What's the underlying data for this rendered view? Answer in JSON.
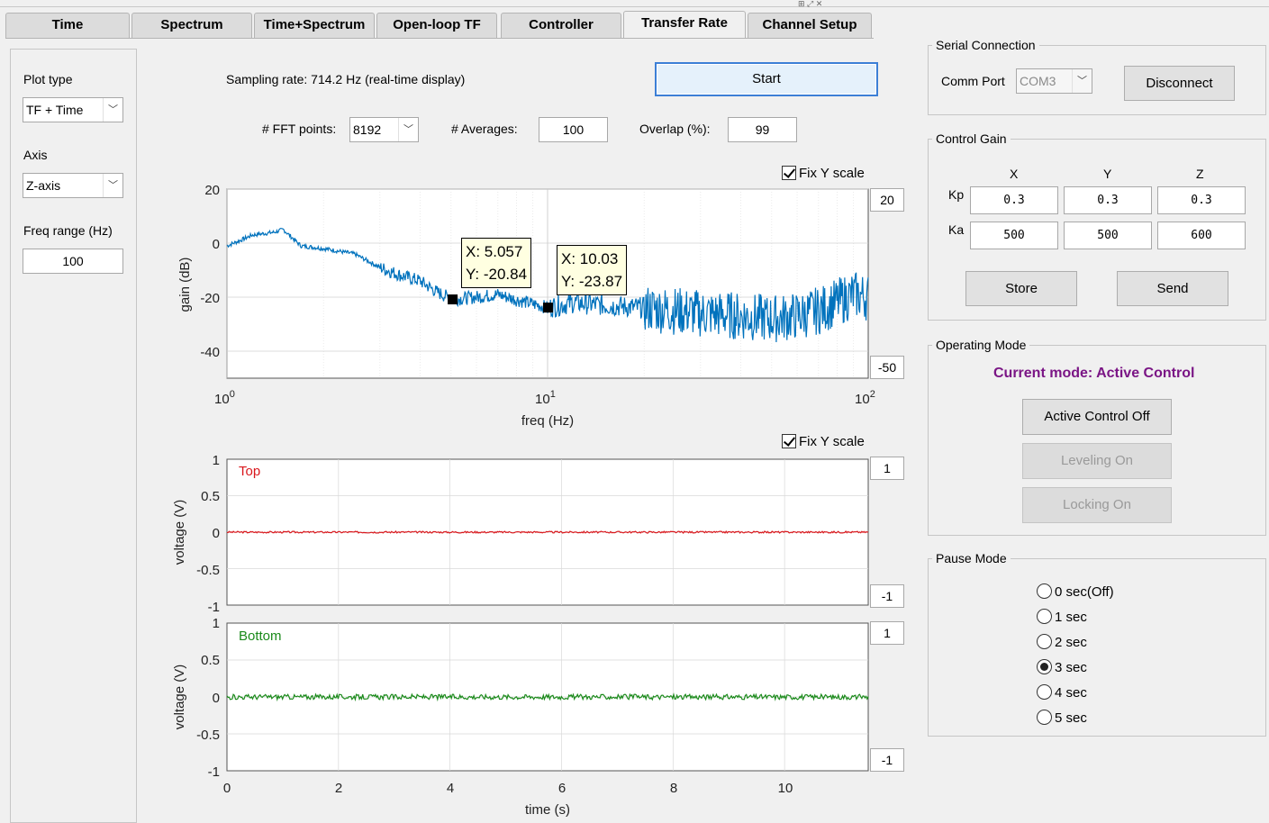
{
  "tabs": [
    {
      "label": "Time"
    },
    {
      "label": "Spectrum"
    },
    {
      "label": "Time+Spectrum"
    },
    {
      "label": "Open-loop TF"
    },
    {
      "label": "Controller"
    },
    {
      "label": "Transfer Rate"
    },
    {
      "label": "Channel Setup"
    }
  ],
  "active_tab": "Transfer Rate",
  "left_panel": {
    "plot_type_label": "Plot type",
    "plot_type_value": "TF + Time",
    "axis_label": "Axis",
    "axis_value": "Z-axis",
    "freq_range_label": "Freq range (Hz)",
    "freq_range_value": "100"
  },
  "acquisition": {
    "sampling_rate_text": "Sampling rate: 714.2 Hz (real-time display)",
    "start_label": "Start",
    "fft_points_label": "# FFT points:",
    "fft_points_value": "8192",
    "averages_label": "# Averages:",
    "averages_value": "100",
    "overlap_label": "Overlap (%):",
    "overlap_value": "99"
  },
  "tf_plot": {
    "fix_y_label": "Fix Y scale",
    "fix_y_checked": true,
    "y_max_field": "20",
    "y_min_field": "-50",
    "ylabel": "gain (dB)",
    "xlabel": "freq (Hz)",
    "yticks": [
      "20",
      "0",
      "-20",
      "-40"
    ],
    "xticks": [
      {
        "base": "10",
        "exp": "0"
      },
      {
        "base": "10",
        "exp": "1"
      },
      {
        "base": "10",
        "exp": "2"
      }
    ],
    "tips": [
      {
        "x": "X: 5.057",
        "y": "Y: -20.84"
      },
      {
        "x": "X: 10.03",
        "y": "Y: -23.87"
      }
    ],
    "line_color": "#0072bd"
  },
  "top_plot": {
    "fix_y_label": "Fix Y scale",
    "fix_y_checked": true,
    "legend": "Top",
    "legend_color": "#d9171c",
    "y_max_field": "1",
    "y_min_field": "-1",
    "ylabel": "voltage (V)",
    "yticks": [
      "1",
      "0.5",
      "0",
      "-0.5",
      "-1"
    ]
  },
  "bottom_plot": {
    "legend": "Bottom",
    "legend_color": "#1a8a1a",
    "y_max_field": "1",
    "y_min_field": "-1",
    "ylabel": "voltage (V)",
    "yticks": [
      "1",
      "0.5",
      "0",
      "-0.5",
      "-1"
    ],
    "xticks": [
      "0",
      "2",
      "4",
      "6",
      "8",
      "10"
    ],
    "xlabel": "time (s)"
  },
  "chart_data": [
    {
      "type": "line",
      "xscale": "log",
      "ylabel": "gain (dB)",
      "xlabel": "freq (Hz)",
      "xlim": [
        1,
        100
      ],
      "ylim": [
        -50,
        20
      ],
      "series": [
        {
          "x": [
            1,
            1.1,
            1.2,
            1.4,
            1.5,
            1.7,
            2,
            2.5,
            3,
            3.5,
            4,
            4.5,
            5.057,
            6,
            7,
            8,
            10.03,
            12,
            15,
            20,
            25,
            30,
            40,
            50,
            60,
            70,
            80,
            90,
            100
          ],
          "y": [
            -1,
            1,
            3,
            4,
            5,
            -1,
            -2,
            -4,
            -9,
            -12,
            -14,
            -18,
            -20.84,
            -20,
            -19,
            -21,
            -23.87,
            -22,
            -23,
            -24,
            -25,
            -26,
            -27,
            -28,
            -27,
            -25,
            -22,
            -19,
            -20
          ]
        }
      ],
      "markers": [
        {
          "x": 5.057,
          "y": -20.84
        },
        {
          "x": 10.03,
          "y": -23.87
        }
      ]
    },
    {
      "type": "line",
      "legend": [
        "Top"
      ],
      "ylabel": "voltage (V)",
      "xlim": [
        0,
        11.5
      ],
      "ylim": [
        -1,
        1
      ],
      "series": [
        {
          "name": "Top",
          "x": [
            0,
            11.5
          ],
          "y": [
            0,
            0
          ]
        }
      ]
    },
    {
      "type": "line",
      "legend": [
        "Bottom"
      ],
      "ylabel": "voltage (V)",
      "xlabel": "time (s)",
      "xlim": [
        0,
        11.5
      ],
      "ylim": [
        -1,
        1
      ],
      "series": [
        {
          "name": "Bottom",
          "x": [
            0,
            11.5
          ],
          "y": [
            0,
            0
          ]
        }
      ]
    }
  ],
  "serial": {
    "title": "Serial Connection",
    "comm_port_label": "Comm Port",
    "comm_port_value": "COM3",
    "disconnect_label": "Disconnect"
  },
  "gain": {
    "title": "Control Gain",
    "cols": [
      "X",
      "Y",
      "Z"
    ],
    "kp_label": "Kp",
    "ka_label": "Ka",
    "kp": [
      "0.3",
      "0.3",
      "0.3"
    ],
    "ka": [
      "500",
      "500",
      "600"
    ],
    "store_label": "Store",
    "send_label": "Send"
  },
  "operating": {
    "title": "Operating Mode",
    "current": "Current mode: Active Control",
    "active_off": "Active Control Off",
    "leveling_on": "Leveling On",
    "locking_on": "Locking On"
  },
  "pause": {
    "title": "Pause Mode",
    "options": [
      "0 sec(Off)",
      "1 sec",
      "2 sec",
      "3 sec",
      "4 sec",
      "5 sec"
    ],
    "selected": 3
  }
}
